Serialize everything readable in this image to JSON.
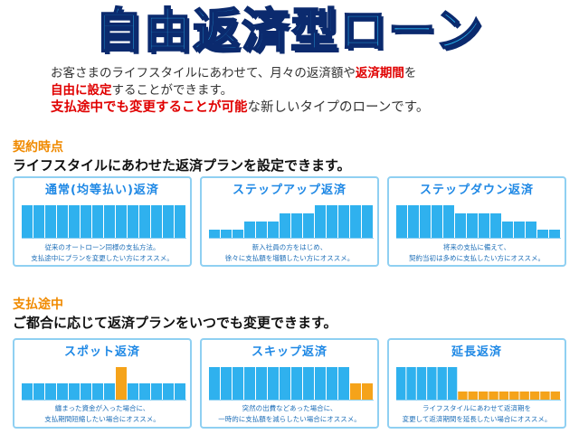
{
  "title": "自由返済型ローン",
  "intro": {
    "line1_a": "お客さまのライフスタイルにあわせて、月々の返済額や",
    "line1_b": "返済期間",
    "line1_c": "を",
    "line2_a": "自由に設定",
    "line2_b": "することができます。",
    "line3_a": "支払途中でも変更することが可能",
    "line3_b": "な新しいタイプのローンです。"
  },
  "section1": {
    "label": "契約時点",
    "subtitle": "ライフスタイルにあわせた返済プランを設定できます。",
    "cards": [
      {
        "title": "通常(均等払い)返済",
        "desc1": "従来のオートローン同様の支払方法。",
        "desc2": "支払途中にプランを変更したい方にオススメ。"
      },
      {
        "title": "ステップアップ返済",
        "desc1": "新入社員の方をはじめ、",
        "desc2": "徐々に支払額を増額したい方にオススメ。"
      },
      {
        "title": "ステップダウン返済",
        "desc1": "将来の支払に備えて、",
        "desc2": "契約当初は多めに支払したい方にオススメ。"
      }
    ]
  },
  "section2": {
    "label": "支払途中",
    "subtitle": "ご都合に応じて返済プランをいつでも変更できます。",
    "cards": [
      {
        "title": "スポット返済",
        "desc1": "纏まった資金が入った場合に、",
        "desc2": "支払期間短縮したい場合にオススメ。"
      },
      {
        "title": "スキップ返済",
        "desc1": "突然の出費などあった場合に、",
        "desc2": "一時的に支払額を減らしたい場合にオススメ。"
      },
      {
        "title": "延長返済",
        "desc1": "ライフスタイルにあわせて返済期を",
        "desc2": "変更して返済期間を延長したい場合にオススメ。"
      }
    ]
  },
  "chart_data": [
    {
      "type": "bar",
      "values": [
        4,
        4,
        4,
        4,
        4,
        4,
        4,
        4,
        4,
        4,
        4,
        4,
        4,
        4
      ],
      "highlight": []
    },
    {
      "type": "bar",
      "values": [
        1,
        1,
        1,
        2,
        2,
        2,
        3,
        3,
        3,
        4,
        4,
        4,
        4,
        4
      ],
      "highlight": []
    },
    {
      "type": "bar",
      "values": [
        4,
        4,
        4,
        4,
        4,
        3,
        3,
        3,
        3,
        2,
        2,
        2,
        1,
        1
      ],
      "highlight": []
    },
    {
      "type": "bar",
      "values": [
        2,
        2,
        2,
        2,
        2,
        2,
        2,
        2,
        4,
        2,
        2,
        2,
        2,
        2
      ],
      "highlight": [
        8
      ]
    },
    {
      "type": "bar",
      "values": [
        4,
        4,
        4,
        4,
        4,
        4,
        4,
        4,
        4,
        4,
        4,
        4,
        2,
        2
      ],
      "highlight": [
        12,
        13
      ]
    },
    {
      "type": "bar",
      "values": [
        4,
        4,
        4,
        4,
        4,
        4,
        1,
        1,
        1,
        1,
        1,
        1,
        1,
        1,
        1,
        1
      ],
      "highlight": [
        6,
        7,
        8,
        9,
        10,
        11,
        12,
        13,
        14,
        15
      ]
    }
  ],
  "colors": {
    "bar": "#2fb1ee",
    "bar_highlight": "#f5a31a",
    "bar_outline": "#ffffff",
    "baseline": "#8fd0f2"
  }
}
